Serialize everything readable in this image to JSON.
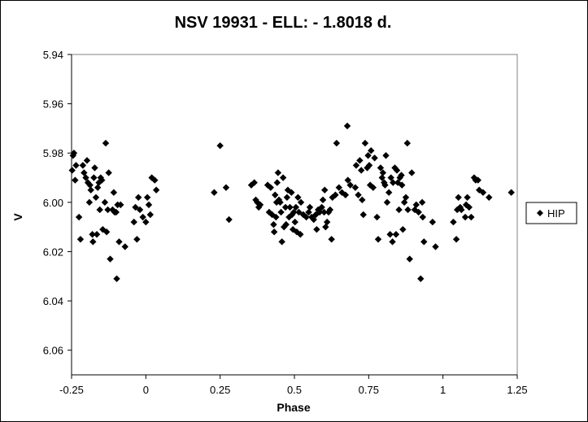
{
  "chart_data": {
    "type": "scatter",
    "title": "NSV 19931 - ELL: - 1.8018 d.",
    "xlabel": "Phase",
    "ylabel": "V",
    "xlim": [
      -0.25,
      1.25
    ],
    "ylim": [
      5.94,
      6.07
    ],
    "y_inverted": true,
    "x_ticks": [
      "-0.25",
      "0",
      "0.25",
      "0.5",
      "0.75",
      "1",
      "1.25"
    ],
    "x_tick_values": [
      -0.25,
      0,
      0.25,
      0.5,
      0.75,
      1,
      1.25
    ],
    "y_ticks": [
      "5.94",
      "5.96",
      "5.98",
      "6.00",
      "6.02",
      "6.04",
      "6.06"
    ],
    "y_tick_values": [
      5.94,
      5.96,
      5.98,
      6.0,
      6.02,
      6.04,
      6.06
    ],
    "grid": false,
    "legend_position": "right",
    "marker": "diamond",
    "series": [
      {
        "name": "HIP",
        "color": "#000000",
        "points": [
          [
            -0.248,
            5.987
          ],
          [
            -0.245,
            5.981
          ],
          [
            -0.242,
            5.98
          ],
          [
            -0.238,
            5.991
          ],
          [
            -0.235,
            5.985
          ],
          [
            -0.225,
            6.006
          ],
          [
            -0.22,
            6.015
          ],
          [
            -0.212,
            5.985
          ],
          [
            -0.208,
            5.988
          ],
          [
            -0.202,
            5.99
          ],
          [
            -0.198,
            5.983
          ],
          [
            -0.195,
            5.992
          ],
          [
            -0.19,
            6.0
          ],
          [
            -0.188,
            5.993
          ],
          [
            -0.185,
            5.995
          ],
          [
            -0.18,
            6.013
          ],
          [
            -0.178,
            6.016
          ],
          [
            -0.175,
            5.99
          ],
          [
            -0.172,
            5.986
          ],
          [
            -0.168,
            5.998
          ],
          [
            -0.165,
            6.013
          ],
          [
            -0.162,
            5.994
          ],
          [
            -0.158,
            5.992
          ],
          [
            -0.155,
            6.003
          ],
          [
            -0.152,
            5.99
          ],
          [
            -0.148,
            5.991
          ],
          [
            -0.145,
            6.011
          ],
          [
            -0.138,
            6.0
          ],
          [
            -0.135,
            5.976
          ],
          [
            -0.132,
            6.012
          ],
          [
            -0.128,
            6.003
          ],
          [
            -0.125,
            5.988
          ],
          [
            -0.12,
            6.023
          ],
          [
            -0.112,
            6.003
          ],
          [
            -0.108,
            5.996
          ],
          [
            -0.105,
            6.004
          ],
          [
            -0.1,
            6.004
          ],
          [
            -0.098,
            6.031
          ],
          [
            -0.095,
            6.001
          ],
          [
            -0.09,
            6.016
          ],
          [
            -0.085,
            6.001
          ],
          [
            -0.07,
            6.018
          ],
          [
            -0.04,
            6.008
          ],
          [
            -0.035,
            6.002
          ],
          [
            -0.03,
            6.015
          ],
          [
            -0.025,
            5.998
          ],
          [
            -0.02,
            6.003
          ],
          [
            -0.01,
            6.006
          ],
          [
            0.0,
            6.008
          ],
          [
            0.005,
            5.998
          ],
          [
            0.01,
            6.001
          ],
          [
            0.015,
            6.005
          ],
          [
            0.02,
            5.99
          ],
          [
            0.03,
            5.991
          ],
          [
            0.035,
            5.995
          ],
          [
            0.23,
            5.996
          ],
          [
            0.25,
            5.977
          ],
          [
            0.27,
            5.994
          ],
          [
            0.28,
            6.007
          ],
          [
            0.355,
            5.993
          ],
          [
            0.365,
            5.992
          ],
          [
            0.37,
            5.999
          ],
          [
            0.375,
            6.0
          ],
          [
            0.38,
            6.002
          ],
          [
            0.385,
            6.001
          ],
          [
            0.41,
            5.993
          ],
          [
            0.415,
            6.004
          ],
          [
            0.42,
            5.994
          ],
          [
            0.425,
            6.005
          ],
          [
            0.43,
            6.009
          ],
          [
            0.432,
            6.012
          ],
          [
            0.435,
            5.997
          ],
          [
            0.438,
            6.006
          ],
          [
            0.44,
            6.0
          ],
          [
            0.442,
            5.992
          ],
          [
            0.445,
            5.988
          ],
          [
            0.448,
            5.999
          ],
          [
            0.452,
            6.0
          ],
          [
            0.455,
            6.004
          ],
          [
            0.458,
            6.016
          ],
          [
            0.462,
            5.99
          ],
          [
            0.465,
            6.01
          ],
          [
            0.47,
            6.002
          ],
          [
            0.472,
            6.009
          ],
          [
            0.475,
            5.998
          ],
          [
            0.478,
            5.995
          ],
          [
            0.482,
            6.006
          ],
          [
            0.485,
            6.002
          ],
          [
            0.49,
            5.996
          ],
          [
            0.492,
            6.005
          ],
          [
            0.495,
            6.011
          ],
          [
            0.498,
            6.004
          ],
          [
            0.502,
            6.008
          ],
          [
            0.505,
            6.002
          ],
          [
            0.508,
            6.012
          ],
          [
            0.512,
            5.998
          ],
          [
            0.515,
            6.004
          ],
          [
            0.52,
            6.013
          ],
          [
            0.522,
            6.0
          ],
          [
            0.53,
            6.005
          ],
          [
            0.54,
            6.006
          ],
          [
            0.548,
            6.004
          ],
          [
            0.552,
            6.002
          ],
          [
            0.558,
            6.006
          ],
          [
            0.565,
            6.007
          ],
          [
            0.572,
            6.005
          ],
          [
            0.575,
            6.011
          ],
          [
            0.58,
            6.003
          ],
          [
            0.585,
            6.004
          ],
          [
            0.592,
            6.002
          ],
          [
            0.596,
            5.999
          ],
          [
            0.6,
            6.004
          ],
          [
            0.602,
            5.995
          ],
          [
            0.605,
            6.01
          ],
          [
            0.61,
            6.008
          ],
          [
            0.615,
            6.004
          ],
          [
            0.62,
            6.003
          ],
          [
            0.625,
            6.015
          ],
          [
            0.628,
            5.998
          ],
          [
            0.638,
            5.997
          ],
          [
            0.642,
            5.976
          ],
          [
            0.65,
            5.994
          ],
          [
            0.66,
            5.996
          ],
          [
            0.672,
            5.997
          ],
          [
            0.678,
            5.969
          ],
          [
            0.68,
            5.991
          ],
          [
            0.688,
            5.993
          ],
          [
            0.705,
            5.994
          ],
          [
            0.708,
            5.985
          ],
          [
            0.715,
            5.997
          ],
          [
            0.72,
            5.983
          ],
          [
            0.725,
            5.987
          ],
          [
            0.728,
            5.999
          ],
          [
            0.732,
            6.005
          ],
          [
            0.738,
            5.976
          ],
          [
            0.745,
            5.986
          ],
          [
            0.748,
            5.981
          ],
          [
            0.752,
            5.985
          ],
          [
            0.755,
            5.993
          ],
          [
            0.758,
            5.979
          ],
          [
            0.765,
            5.994
          ],
          [
            0.77,
            5.982
          ],
          [
            0.778,
            6.006
          ],
          [
            0.782,
            6.015
          ],
          [
            0.79,
            5.986
          ],
          [
            0.795,
            5.99
          ],
          [
            0.798,
            5.988
          ],
          [
            0.802,
            5.992
          ],
          [
            0.805,
            5.993
          ],
          [
            0.808,
            5.981
          ],
          [
            0.812,
            6.0
          ],
          [
            0.818,
            5.996
          ],
          [
            0.822,
            6.013
          ],
          [
            0.825,
            5.99
          ],
          [
            0.83,
            6.016
          ],
          [
            0.832,
            5.992
          ],
          [
            0.838,
            5.986
          ],
          [
            0.842,
            6.013
          ],
          [
            0.845,
            5.987
          ],
          [
            0.848,
            5.992
          ],
          [
            0.852,
            6.003
          ],
          [
            0.855,
            5.99
          ],
          [
            0.86,
            5.989
          ],
          [
            0.862,
            5.993
          ],
          [
            0.865,
            6.011
          ],
          [
            0.87,
            6.0
          ],
          [
            0.875,
            5.998
          ],
          [
            0.88,
            5.976
          ],
          [
            0.882,
            6.003
          ],
          [
            0.888,
            6.023
          ],
          [
            0.895,
            5.988
          ],
          [
            0.905,
            6.003
          ],
          [
            0.91,
            6.001
          ],
          [
            0.918,
            6.004
          ],
          [
            0.925,
            6.031
          ],
          [
            0.93,
            6.0
          ],
          [
            0.932,
            6.006
          ],
          [
            0.936,
            6.016
          ],
          [
            0.965,
            6.008
          ],
          [
            0.975,
            6.018
          ],
          [
            1.035,
            6.008
          ],
          [
            1.045,
            6.015
          ],
          [
            1.048,
            6.003
          ],
          [
            1.052,
            5.998
          ],
          [
            1.058,
            6.002
          ],
          [
            1.062,
            6.003
          ],
          [
            1.075,
            6.006
          ],
          [
            1.078,
            6.001
          ],
          [
            1.082,
            5.998
          ],
          [
            1.088,
            6.002
          ],
          [
            1.095,
            6.006
          ],
          [
            1.105,
            5.99
          ],
          [
            1.11,
            5.991
          ],
          [
            1.118,
            5.991
          ],
          [
            1.122,
            5.995
          ],
          [
            1.135,
            5.996
          ],
          [
            1.155,
            5.998
          ],
          [
            1.23,
            5.996
          ]
        ]
      }
    ]
  }
}
